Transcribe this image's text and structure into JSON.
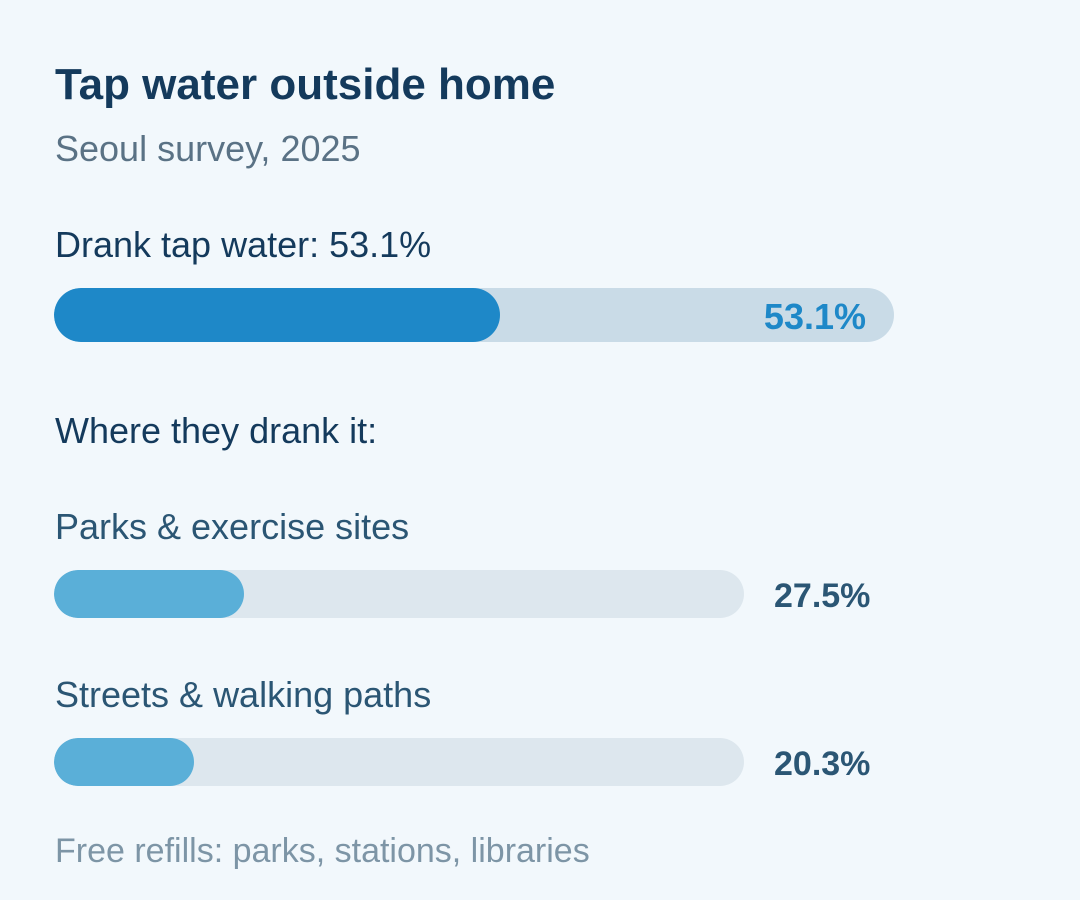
{
  "chart_data": {
    "type": "bar",
    "title": "Tap water outside home",
    "subtitle": "Seoul survey, 2025",
    "main_metric": {
      "label": "Drank tap water: 53.1%",
      "value": 53.1,
      "value_label": "53.1%",
      "color": "#1e88c8",
      "track_color": "#c9dbe7"
    },
    "section_label": "Where they drank it:",
    "categories": [
      "Parks & exercise sites",
      "Streets & walking paths"
    ],
    "values": [
      27.5,
      20.3
    ],
    "value_labels": [
      "27.5%",
      "20.3%"
    ],
    "bar_color": "#5aafd8",
    "track_color": "#dde7ee",
    "ylim": [
      0,
      100
    ],
    "footnote": "Free refills: parks, stations, libraries"
  }
}
